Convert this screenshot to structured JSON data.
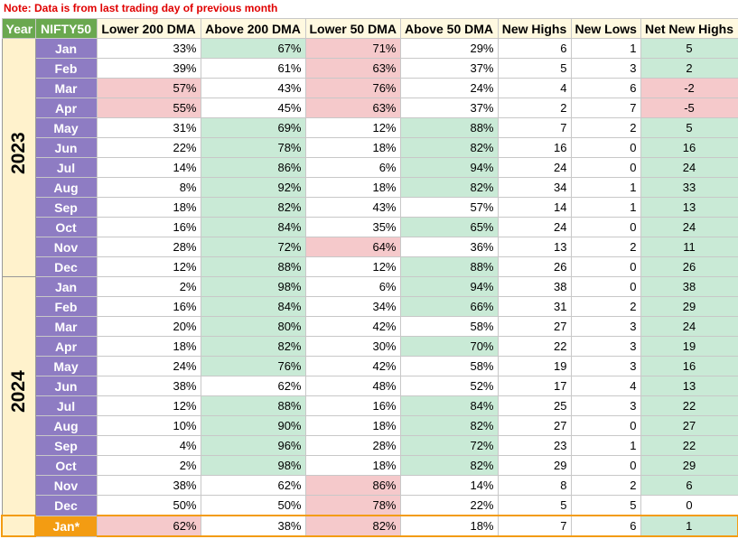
{
  "note": "Note: Data is from last trading day of previous month",
  "colors": {
    "g": "#c9ead6",
    "r": "#f5c9cb"
  },
  "table": {
    "headers": [
      "Year",
      "NIFTY50",
      "Lower 200 DMA",
      "Above 200 DMA",
      "Lower 50 DMA",
      "Above 50 DMA",
      "New Highs",
      "New Lows",
      "Net New Highs"
    ],
    "groups": [
      {
        "year": "2023",
        "rows": [
          {
            "month": "Jan",
            "cells": [
              "33%",
              "67%",
              "71%",
              "29%",
              "6",
              "1",
              "5"
            ],
            "fills": [
              null,
              "g",
              "r",
              null,
              null,
              null,
              "g"
            ]
          },
          {
            "month": "Feb",
            "cells": [
              "39%",
              "61%",
              "63%",
              "37%",
              "5",
              "3",
              "2"
            ],
            "fills": [
              null,
              null,
              "r",
              null,
              null,
              null,
              "g"
            ]
          },
          {
            "month": "Mar",
            "cells": [
              "57%",
              "43%",
              "76%",
              "24%",
              "4",
              "6",
              "-2"
            ],
            "fills": [
              "r",
              null,
              "r",
              null,
              null,
              null,
              "r"
            ]
          },
          {
            "month": "Apr",
            "cells": [
              "55%",
              "45%",
              "63%",
              "37%",
              "2",
              "7",
              "-5"
            ],
            "fills": [
              "r",
              null,
              "r",
              null,
              null,
              null,
              "r"
            ]
          },
          {
            "month": "May",
            "cells": [
              "31%",
              "69%",
              "12%",
              "88%",
              "7",
              "2",
              "5"
            ],
            "fills": [
              null,
              "g",
              null,
              "g",
              null,
              null,
              "g"
            ]
          },
          {
            "month": "Jun",
            "cells": [
              "22%",
              "78%",
              "18%",
              "82%",
              "16",
              "0",
              "16"
            ],
            "fills": [
              null,
              "g",
              null,
              "g",
              null,
              null,
              "g"
            ]
          },
          {
            "month": "Jul",
            "cells": [
              "14%",
              "86%",
              "6%",
              "94%",
              "24",
              "0",
              "24"
            ],
            "fills": [
              null,
              "g",
              null,
              "g",
              null,
              null,
              "g"
            ]
          },
          {
            "month": "Aug",
            "cells": [
              "8%",
              "92%",
              "18%",
              "82%",
              "34",
              "1",
              "33"
            ],
            "fills": [
              null,
              "g",
              null,
              "g",
              null,
              null,
              "g"
            ]
          },
          {
            "month": "Sep",
            "cells": [
              "18%",
              "82%",
              "43%",
              "57%",
              "14",
              "1",
              "13"
            ],
            "fills": [
              null,
              "g",
              null,
              null,
              null,
              null,
              "g"
            ]
          },
          {
            "month": "Oct",
            "cells": [
              "16%",
              "84%",
              "35%",
              "65%",
              "24",
              "0",
              "24"
            ],
            "fills": [
              null,
              "g",
              null,
              "g",
              null,
              null,
              "g"
            ]
          },
          {
            "month": "Nov",
            "cells": [
              "28%",
              "72%",
              "64%",
              "36%",
              "13",
              "2",
              "11"
            ],
            "fills": [
              null,
              "g",
              "r",
              null,
              null,
              null,
              "g"
            ]
          },
          {
            "month": "Dec",
            "cells": [
              "12%",
              "88%",
              "12%",
              "88%",
              "26",
              "0",
              "26"
            ],
            "fills": [
              null,
              "g",
              null,
              "g",
              null,
              null,
              "g"
            ]
          }
        ]
      },
      {
        "year": "2024",
        "rows": [
          {
            "month": "Jan",
            "cells": [
              "2%",
              "98%",
              "6%",
              "94%",
              "38",
              "0",
              "38"
            ],
            "fills": [
              null,
              "g",
              null,
              "g",
              null,
              null,
              "g"
            ]
          },
          {
            "month": "Feb",
            "cells": [
              "16%",
              "84%",
              "34%",
              "66%",
              "31",
              "2",
              "29"
            ],
            "fills": [
              null,
              "g",
              null,
              "g",
              null,
              null,
              "g"
            ]
          },
          {
            "month": "Mar",
            "cells": [
              "20%",
              "80%",
              "42%",
              "58%",
              "27",
              "3",
              "24"
            ],
            "fills": [
              null,
              "g",
              null,
              null,
              null,
              null,
              "g"
            ]
          },
          {
            "month": "Apr",
            "cells": [
              "18%",
              "82%",
              "30%",
              "70%",
              "22",
              "3",
              "19"
            ],
            "fills": [
              null,
              "g",
              null,
              "g",
              null,
              null,
              "g"
            ]
          },
          {
            "month": "May",
            "cells": [
              "24%",
              "76%",
              "42%",
              "58%",
              "19",
              "3",
              "16"
            ],
            "fills": [
              null,
              "g",
              null,
              null,
              null,
              null,
              "g"
            ]
          },
          {
            "month": "Jun",
            "cells": [
              "38%",
              "62%",
              "48%",
              "52%",
              "17",
              "4",
              "13"
            ],
            "fills": [
              null,
              null,
              null,
              null,
              null,
              null,
              "g"
            ]
          },
          {
            "month": "Jul",
            "cells": [
              "12%",
              "88%",
              "16%",
              "84%",
              "25",
              "3",
              "22"
            ],
            "fills": [
              null,
              "g",
              null,
              "g",
              null,
              null,
              "g"
            ]
          },
          {
            "month": "Aug",
            "cells": [
              "10%",
              "90%",
              "18%",
              "82%",
              "27",
              "0",
              "27"
            ],
            "fills": [
              null,
              "g",
              null,
              "g",
              null,
              null,
              "g"
            ]
          },
          {
            "month": "Sep",
            "cells": [
              "4%",
              "96%",
              "28%",
              "72%",
              "23",
              "1",
              "22"
            ],
            "fills": [
              null,
              "g",
              null,
              "g",
              null,
              null,
              "g"
            ]
          },
          {
            "month": "Oct",
            "cells": [
              "2%",
              "98%",
              "18%",
              "82%",
              "29",
              "0",
              "29"
            ],
            "fills": [
              null,
              "g",
              null,
              "g",
              null,
              null,
              "g"
            ]
          },
          {
            "month": "Nov",
            "cells": [
              "38%",
              "62%",
              "86%",
              "14%",
              "8",
              "2",
              "6"
            ],
            "fills": [
              null,
              null,
              "r",
              null,
              null,
              null,
              "g"
            ]
          },
          {
            "month": "Dec",
            "cells": [
              "50%",
              "50%",
              "78%",
              "22%",
              "5",
              "5",
              "0"
            ],
            "fills": [
              null,
              null,
              "r",
              null,
              null,
              null,
              null
            ]
          }
        ]
      },
      {
        "accent": "#f39c12",
        "rows": [
          {
            "month": "Jan*",
            "cells": [
              "62%",
              "38%",
              "82%",
              "18%",
              "7",
              "6",
              "1"
            ],
            "fills": [
              "r",
              null,
              "r",
              null,
              null,
              null,
              "g"
            ]
          }
        ]
      }
    ]
  }
}
